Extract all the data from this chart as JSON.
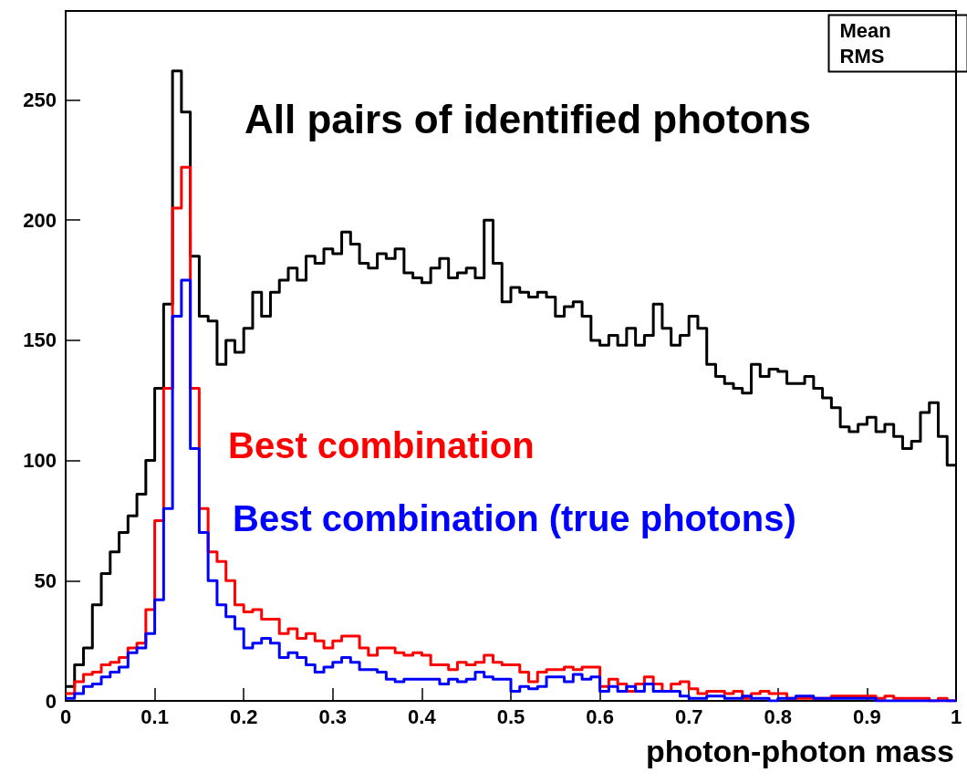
{
  "chart_data": {
    "type": "histogram",
    "xlabel": "photon-photon mass",
    "annotations": [
      "Mean",
      "RMS"
    ],
    "xlim": [
      0,
      1
    ],
    "xticks": [
      0,
      0.1,
      0.2,
      0.3,
      0.4,
      0.5,
      0.6,
      0.7,
      0.8,
      0.9,
      1
    ],
    "ylim": [
      0,
      287
    ],
    "yticks": [
      0,
      50,
      100,
      150,
      200,
      250
    ],
    "bins": [
      0,
      0.01,
      0.02,
      0.03,
      0.04,
      0.05,
      0.06,
      0.07,
      0.08,
      0.09,
      0.1,
      0.11,
      0.12,
      0.13,
      0.14,
      0.15,
      0.16,
      0.17,
      0.18,
      0.19,
      0.2,
      0.21,
      0.22,
      0.23,
      0.24,
      0.25,
      0.26,
      0.27,
      0.28,
      0.29,
      0.3,
      0.31,
      0.32,
      0.33,
      0.34,
      0.35,
      0.36,
      0.37,
      0.38,
      0.39,
      0.4,
      0.41,
      0.42,
      0.43,
      0.44,
      0.45,
      0.46,
      0.47,
      0.48,
      0.49,
      0.5,
      0.51,
      0.52,
      0.53,
      0.54,
      0.55,
      0.56,
      0.57,
      0.58,
      0.59,
      0.6,
      0.61,
      0.62,
      0.63,
      0.64,
      0.65,
      0.66,
      0.67,
      0.68,
      0.69,
      0.7,
      0.71,
      0.72,
      0.73,
      0.74,
      0.75,
      0.76,
      0.77,
      0.78,
      0.79,
      0.8,
      0.81,
      0.82,
      0.83,
      0.84,
      0.85,
      0.86,
      0.87,
      0.88,
      0.89,
      0.9,
      0.91,
      0.92,
      0.93,
      0.94,
      0.95,
      0.96,
      0.97,
      0.98,
      0.99,
      1
    ],
    "series": [
      {
        "name": "All pairs of identified photons",
        "color": "#000000",
        "values": [
          6,
          15,
          22,
          40,
          53,
          62,
          70,
          77,
          86,
          100,
          130,
          165,
          262,
          245,
          185,
          160,
          158,
          140,
          150,
          145,
          155,
          170,
          160,
          170,
          175,
          180,
          175,
          185,
          182,
          188,
          186,
          195,
          190,
          182,
          180,
          186,
          184,
          188,
          178,
          176,
          174,
          180,
          184,
          176,
          178,
          180,
          176,
          200,
          182,
          166,
          172,
          170,
          168,
          170,
          168,
          160,
          164,
          166,
          160,
          150,
          148,
          152,
          148,
          155,
          148,
          152,
          165,
          155,
          148,
          152,
          160,
          155,
          140,
          135,
          132,
          130,
          128,
          140,
          135,
          138,
          137,
          132,
          132,
          135,
          130,
          126,
          122,
          114,
          112,
          115,
          118,
          112,
          115,
          110,
          105,
          108,
          120,
          124,
          110,
          98
        ]
      },
      {
        "name": "Best combination",
        "color": "#ff0000",
        "values": [
          3,
          8,
          11,
          12,
          15,
          16,
          18,
          22,
          24,
          38,
          75,
          130,
          205,
          222,
          130,
          80,
          62,
          58,
          50,
          40,
          37,
          38,
          34,
          34,
          28,
          30,
          26,
          28,
          25,
          22,
          25,
          27,
          27,
          22,
          19,
          22,
          22,
          20,
          19,
          20,
          19,
          15,
          15,
          13,
          16,
          15,
          16,
          19,
          16,
          15,
          15,
          12,
          8,
          12,
          13,
          13,
          14,
          13,
          14,
          14,
          6,
          9,
          7,
          4,
          7,
          10,
          7,
          4,
          7,
          8,
          5,
          3,
          4,
          4,
          3,
          4,
          1,
          3,
          4,
          3,
          3,
          1,
          1,
          1,
          1,
          1,
          2,
          2,
          2,
          2,
          2,
          1,
          2,
          1,
          1,
          1,
          1,
          0,
          1,
          0
        ]
      },
      {
        "name": "Best combination (true photons)",
        "color": "#0000ff",
        "values": [
          1,
          3,
          6,
          7,
          10,
          12,
          14,
          20,
          22,
          28,
          42,
          80,
          160,
          175,
          105,
          70,
          50,
          40,
          35,
          30,
          22,
          24,
          26,
          24,
          18,
          20,
          18,
          15,
          12,
          14,
          16,
          18,
          16,
          13,
          13,
          12,
          9,
          8,
          9,
          9,
          9,
          9,
          7,
          9,
          8,
          9,
          12,
          10,
          9,
          9,
          4,
          6,
          5,
          6,
          10,
          10,
          8,
          11,
          9,
          10,
          4,
          6,
          4,
          6,
          4,
          7,
          4,
          4,
          4,
          2,
          1,
          1,
          2,
          2,
          1,
          1,
          2,
          1,
          1,
          0,
          1,
          1,
          2,
          2,
          1,
          1,
          1,
          1,
          1,
          1,
          1,
          0,
          0,
          0,
          0,
          0,
          0,
          0,
          0,
          0
        ]
      }
    ]
  }
}
